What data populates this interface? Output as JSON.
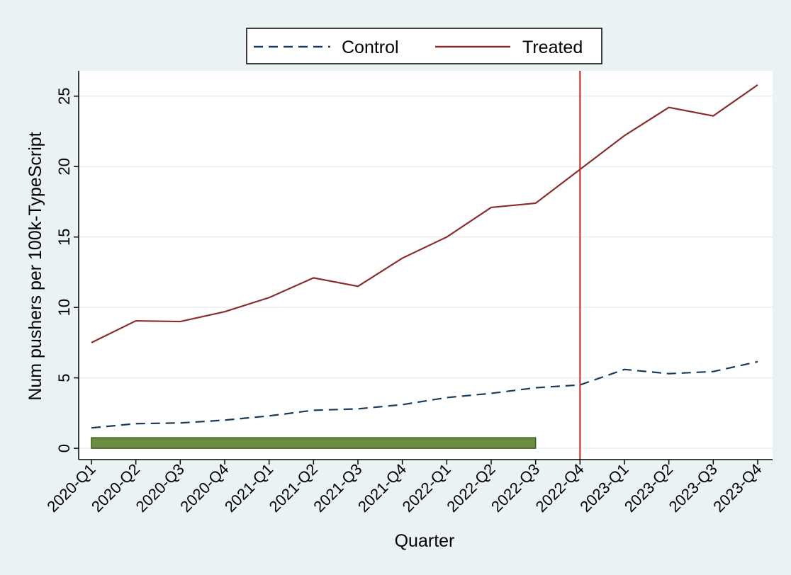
{
  "chart_data": {
    "type": "line",
    "xlabel": "Quarter",
    "ylabel": "Num pushers per 100k-TypeScript",
    "categories": [
      "2020-Q1",
      "2020-Q2",
      "2020-Q3",
      "2020-Q4",
      "2021-Q1",
      "2021-Q2",
      "2021-Q3",
      "2021-Q4",
      "2022-Q1",
      "2022-Q2",
      "2022-Q3",
      "2022-Q4",
      "2023-Q1",
      "2023-Q2",
      "2023-Q3",
      "2023-Q4"
    ],
    "ylim": [
      -0.8,
      26.8
    ],
    "yticks": [
      0,
      5,
      10,
      15,
      20,
      25
    ],
    "grid": "horizontal",
    "legend_position": "top",
    "series": [
      {
        "name": "Control",
        "style": "dashed",
        "color": "#1a3a5c",
        "values": [
          1.45,
          1.75,
          1.8,
          2.0,
          2.3,
          2.7,
          2.8,
          3.1,
          3.6,
          3.9,
          4.3,
          4.5,
          5.6,
          5.3,
          5.45,
          6.15
        ]
      },
      {
        "name": "Treated",
        "style": "solid",
        "color": "#8b2c2c",
        "values": [
          7.5,
          9.05,
          9.0,
          9.7,
          10.7,
          12.1,
          11.5,
          13.5,
          15.0,
          17.1,
          17.4,
          19.8,
          22.2,
          24.2,
          23.6,
          25.8
        ]
      }
    ],
    "vertical_line": {
      "category": "2022-Q4",
      "color": "#cc1f1f"
    },
    "shaded_bar": {
      "from": "2020-Q1",
      "to": "2022-Q3",
      "y_from": 0.0,
      "y_to": 0.75,
      "fill": "#6b8c42",
      "stroke": "#3e5a20"
    }
  }
}
